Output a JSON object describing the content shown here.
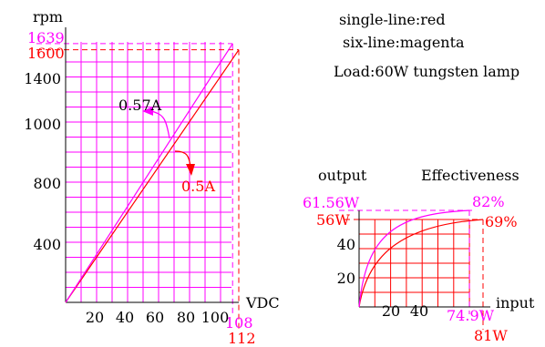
{
  "chart_data": [
    {
      "type": "line",
      "ylabel": "rpm",
      "xlabel": "VDC",
      "xlim": [
        0,
        112
      ],
      "ylim": [
        0,
        1650
      ],
      "x_ticks": [
        "20",
        "40",
        "60",
        "80",
        "100"
      ],
      "y_ticks": [
        "400",
        "800",
        "1000",
        "1400"
      ],
      "x_max_labels": [
        {
          "text": "108",
          "color": "#ff00ff"
        },
        {
          "text": "112",
          "color": "#ff0000"
        }
      ],
      "y_max_labels": [
        {
          "text": "1639",
          "color": "#ff00ff"
        },
        {
          "text": "1600",
          "color": "#ff0000"
        }
      ],
      "series": [
        {
          "name": "red",
          "color": "#ff0000",
          "x": [
            0,
            112
          ],
          "y": [
            0,
            1600
          ]
        },
        {
          "name": "magenta",
          "color": "#ff00ff",
          "x": [
            0,
            108
          ],
          "y": [
            0,
            1639
          ]
        }
      ],
      "annotations": [
        {
          "text": "0.57A",
          "color": "#000000"
        },
        {
          "text": "0.5A",
          "color": "#ff0000"
        }
      ],
      "grid": true
    },
    {
      "type": "line",
      "xlabel": "input",
      "ylabel": "output",
      "secondary_label": "Effectiveness",
      "x_ticks": [
        "20",
        "40"
      ],
      "y_ticks": [
        "20",
        "40"
      ],
      "x_max_labels": [
        {
          "text": "74.9W",
          "color": "#ff00ff"
        },
        {
          "text": "81W",
          "color": "#ff0000"
        }
      ],
      "y_max_labels": [
        {
          "text": "61.56W",
          "color": "#ff00ff"
        },
        {
          "text": "56W",
          "color": "#ff0000"
        }
      ],
      "effectiveness_labels": [
        {
          "text": "82%",
          "color": "#ff00ff"
        },
        {
          "text": "69%",
          "color": "#ff0000"
        }
      ],
      "series": [
        {
          "name": "red",
          "color": "#ff0000",
          "x": [
            0,
            81
          ],
          "y": [
            0,
            56
          ]
        },
        {
          "name": "magenta",
          "color": "#ff00ff",
          "x": [
            0,
            74.9
          ],
          "y": [
            0,
            61.56
          ]
        }
      ],
      "grid": true
    }
  ],
  "legend": {
    "line1": "single-line:red",
    "line2": "six-line:magenta",
    "line3": "Load:60W tungsten lamp"
  }
}
